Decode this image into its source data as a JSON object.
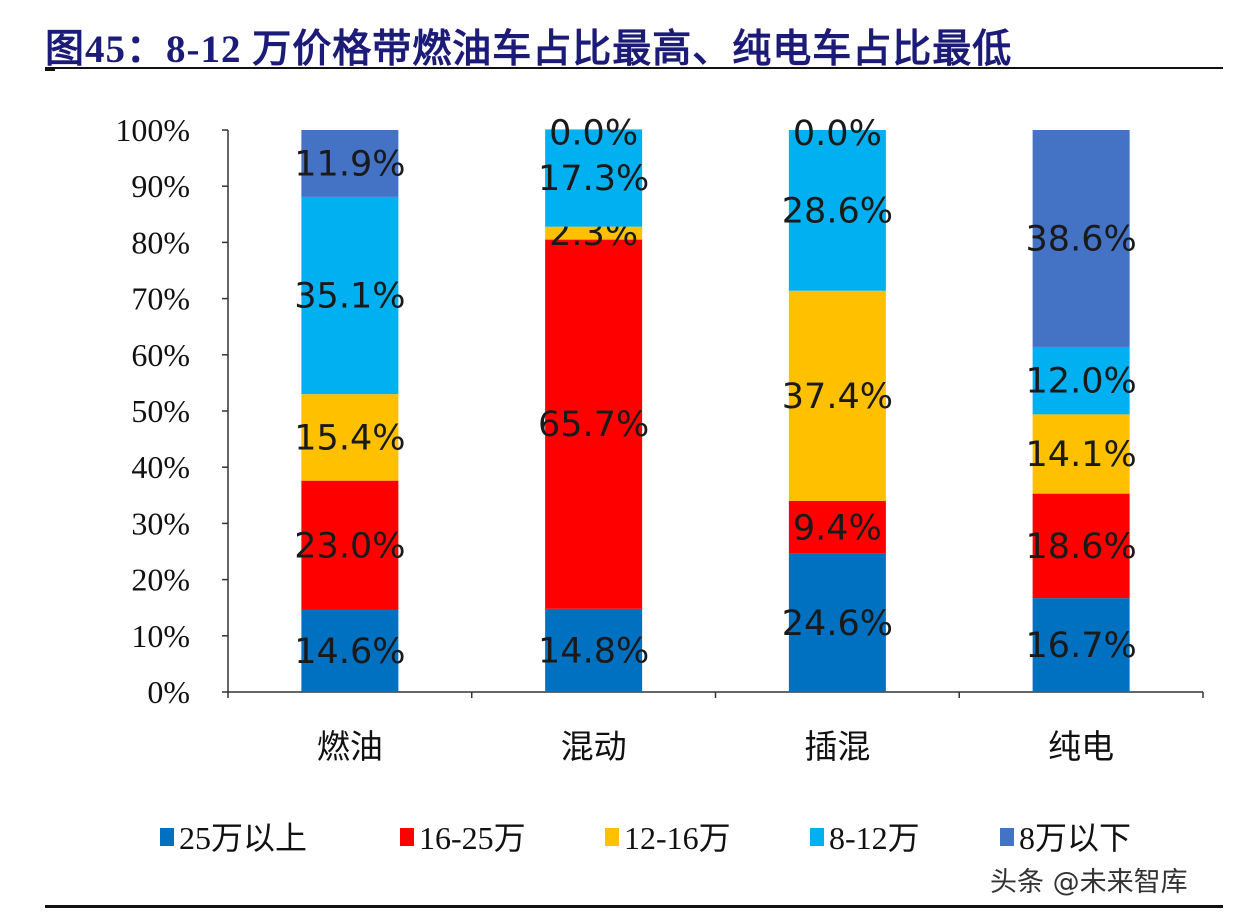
{
  "title": "图45：8-12 万价格带燃油车占比最高、纯电车占比最低",
  "watermark": "头条 @未来智库",
  "chart_data": {
    "type": "bar",
    "stacked": true,
    "title": "图45：8-12 万价格带燃油车占比最高、纯电车占比最低",
    "categories": [
      "燃油",
      "混动",
      "插混",
      "纯电"
    ],
    "ylim": [
      0,
      100
    ],
    "yticks": [
      "0%",
      "10%",
      "20%",
      "30%",
      "40%",
      "50%",
      "60%",
      "70%",
      "80%",
      "90%",
      "100%"
    ],
    "grid": false,
    "legend_position": "bottom",
    "series": [
      {
        "name": "25万以上",
        "color": "#0070C0",
        "values": [
          14.6,
          14.8,
          24.6,
          16.7
        ],
        "labels": [
          "14.6%",
          "14.8%",
          "24.6%",
          "16.7%"
        ]
      },
      {
        "name": "16-25万",
        "color": "#FF0000",
        "values": [
          23.0,
          65.7,
          9.4,
          18.6
        ],
        "labels": [
          "23.0%",
          "65.7%",
          "9.4%",
          "18.6%"
        ]
      },
      {
        "name": "12-16万",
        "color": "#FFC000",
        "values": [
          15.4,
          2.3,
          37.4,
          14.1
        ],
        "labels": [
          "15.4%",
          "2.3%",
          "37.4%",
          "14.1%"
        ]
      },
      {
        "name": "8-12万",
        "color": "#00B0F0",
        "values": [
          35.1,
          17.3,
          28.6,
          12.0
        ],
        "labels": [
          "35.1%",
          "17.3%",
          "28.6%",
          "12.0%"
        ]
      },
      {
        "name": "8万以下",
        "color": "#4472C4",
        "values": [
          11.9,
          0.0,
          0.0,
          38.6
        ],
        "labels": [
          "11.9%",
          "0.0%",
          "0.0%",
          "38.6%"
        ]
      }
    ]
  }
}
